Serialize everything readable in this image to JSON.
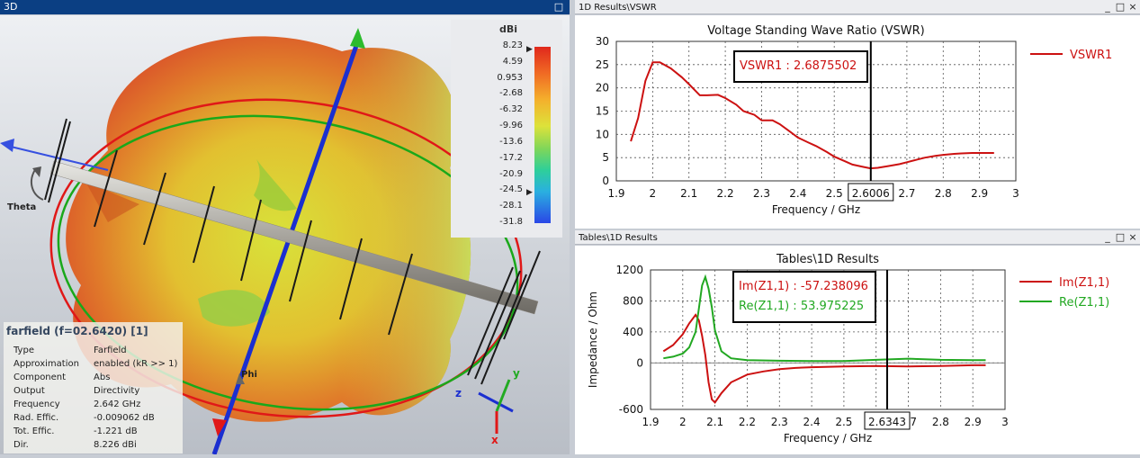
{
  "farfield_window": {
    "title": "3D",
    "colorbar": {
      "unit": "dBi",
      "ticks": [
        "8.23",
        "4.59",
        "0.953",
        "-2.68",
        "-6.32",
        "-9.96",
        "-13.6",
        "-17.2",
        "-20.9",
        "-24.5",
        "-28.1",
        "-31.8"
      ]
    },
    "axis_labels": {
      "theta": "Theta",
      "phi": "Phi",
      "x": "x",
      "y": "y",
      "z": "z"
    },
    "info": {
      "title": "farfield (f=02.6420) [1]",
      "rows": [
        {
          "key": "Type",
          "value": "Farfield"
        },
        {
          "key": "Approximation",
          "value": "enabled (kR >> 1)"
        },
        {
          "key": "Component",
          "value": "Abs"
        },
        {
          "key": "Output",
          "value": "Directivity"
        },
        {
          "key": "Frequency",
          "value": "2.642 GHz"
        },
        {
          "key": "Rad. Effic.",
          "value": "-0.009062 dB"
        },
        {
          "key": "Tot. Effic.",
          "value": "-1.221 dB"
        },
        {
          "key": "Dir.",
          "value": "8.226 dBi"
        }
      ]
    }
  },
  "vswr_window": {
    "title": "1D Results\\VSWR",
    "buttons": [
      "_",
      "□",
      "×"
    ]
  },
  "impedance_window": {
    "title": "Tables\\1D Results",
    "buttons": [
      "_",
      "□",
      "×"
    ]
  },
  "chart_data": [
    {
      "type": "line",
      "title": "Voltage Standing Wave Ratio (VSWR)",
      "xlabel": "Frequency / GHz",
      "ylabel": "",
      "xlim": [
        1.9,
        3.0
      ],
      "ylim": [
        0,
        30
      ],
      "xticks": [
        "1.9",
        "2",
        "2.1",
        "2.2",
        "2.3",
        "2.4",
        "2.5",
        "2.6",
        "2.7",
        "2.8",
        "2.9",
        "3"
      ],
      "yticks": [
        "0",
        "5",
        "10",
        "15",
        "20",
        "25",
        "30"
      ],
      "grid": true,
      "legend_position": "right",
      "marker": {
        "x": 2.6006,
        "x_label": "2.6006",
        "annotations": [
          "VSWR1 : 2.6875502"
        ]
      },
      "series": [
        {
          "name": "VSWR1",
          "color": "#cc1111",
          "x": [
            1.94,
            1.96,
            1.98,
            2.0,
            2.02,
            2.05,
            2.08,
            2.1,
            2.13,
            2.15,
            2.18,
            2.2,
            2.23,
            2.25,
            2.28,
            2.3,
            2.33,
            2.35,
            2.38,
            2.4,
            2.43,
            2.45,
            2.48,
            2.5,
            2.53,
            2.55,
            2.58,
            2.6,
            2.62,
            2.65,
            2.68,
            2.7,
            2.73,
            2.75,
            2.78,
            2.8,
            2.83,
            2.85,
            2.88,
            2.9,
            2.92,
            2.94
          ],
          "values": [
            8.5,
            13.5,
            21.5,
            25.5,
            25.5,
            24.2,
            22.3,
            20.8,
            18.4,
            18.4,
            18.5,
            17.8,
            16.4,
            15.0,
            14.2,
            13.0,
            13.0,
            12.2,
            10.5,
            9.3,
            8.2,
            7.5,
            6.2,
            5.2,
            4.2,
            3.5,
            3.0,
            2.7,
            2.8,
            3.2,
            3.6,
            4.0,
            4.6,
            5.0,
            5.4,
            5.6,
            5.8,
            5.9,
            6.0,
            6.0,
            6.0,
            6.0
          ]
        }
      ]
    },
    {
      "type": "line",
      "title": "Tables\\1D Results",
      "xlabel": "Frequency / GHz",
      "ylabel": "Impedance / Ohm",
      "xlim": [
        1.9,
        3.0
      ],
      "ylim": [
        -600,
        1200
      ],
      "xticks": [
        "1.9",
        "2",
        "2.1",
        "2.2",
        "2.3",
        "2.4",
        "2.5",
        "2.6",
        "2.7",
        "2.8",
        "2.9",
        "3"
      ],
      "yticks": [
        "-600",
        "0",
        "400",
        "800",
        "1200"
      ],
      "grid": true,
      "legend_position": "right",
      "marker": {
        "x": 2.6343,
        "x_label": "2.6343",
        "annotations": [
          "Im(Z1,1) : -57.238096",
          "Re(Z1,1) : 53.975225"
        ]
      },
      "series": [
        {
          "name": "Im(Z1,1)",
          "color": "#cc1111",
          "x": [
            1.94,
            1.97,
            2.0,
            2.02,
            2.04,
            2.05,
            2.06,
            2.07,
            2.08,
            2.09,
            2.1,
            2.12,
            2.15,
            2.2,
            2.25,
            2.3,
            2.35,
            2.4,
            2.5,
            2.6,
            2.7,
            2.8,
            2.9,
            2.94
          ],
          "values": [
            150,
            230,
            370,
            510,
            620,
            550,
            350,
            100,
            -250,
            -470,
            -510,
            -390,
            -250,
            -150,
            -110,
            -80,
            -65,
            -55,
            -45,
            -40,
            -45,
            -40,
            -30,
            -30
          ]
        },
        {
          "name": "Re(Z1,1)",
          "color": "#22a822",
          "x": [
            1.94,
            1.97,
            2.0,
            2.02,
            2.04,
            2.05,
            2.06,
            2.07,
            2.08,
            2.09,
            2.1,
            2.12,
            2.15,
            2.2,
            2.3,
            2.4,
            2.5,
            2.6,
            2.7,
            2.8,
            2.9,
            2.94
          ],
          "values": [
            60,
            80,
            120,
            200,
            400,
            700,
            1000,
            1110,
            960,
            720,
            420,
            150,
            60,
            35,
            28,
            25,
            25,
            40,
            55,
            40,
            35,
            35
          ]
        }
      ]
    }
  ]
}
